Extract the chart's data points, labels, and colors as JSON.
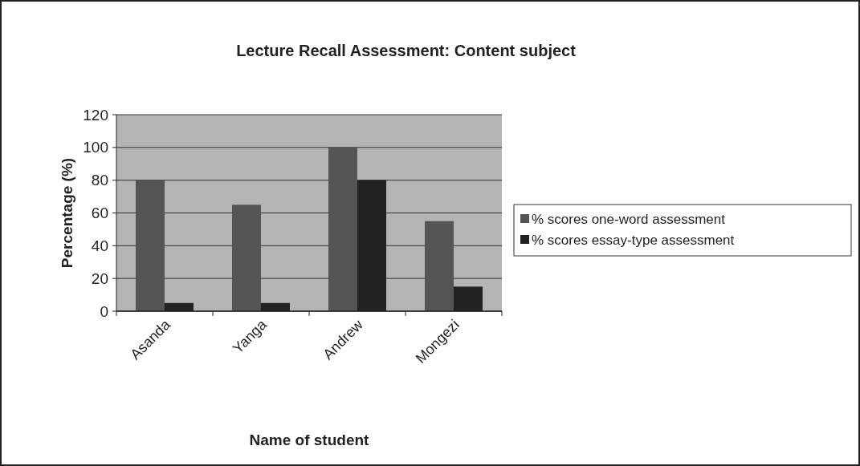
{
  "chart_data": {
    "type": "bar",
    "title": "Lecture Recall Assessment: Content subject",
    "xlabel": "Name of student",
    "ylabel": "Percentage (%)",
    "categories": [
      "Asanda",
      "Yanga",
      "Andrew",
      "Mongezi"
    ],
    "series": [
      {
        "name": "% scores one-word assessment",
        "color": "#555555",
        "values": [
          80,
          65,
          100,
          55
        ]
      },
      {
        "name": "% scores essay-type assessment",
        "color": "#222222",
        "values": [
          5,
          5,
          80,
          15
        ]
      }
    ],
    "ylim": [
      0,
      120
    ],
    "yticks": [
      0,
      20,
      40,
      60,
      80,
      100,
      120
    ],
    "grid": "y",
    "legend": "right"
  }
}
